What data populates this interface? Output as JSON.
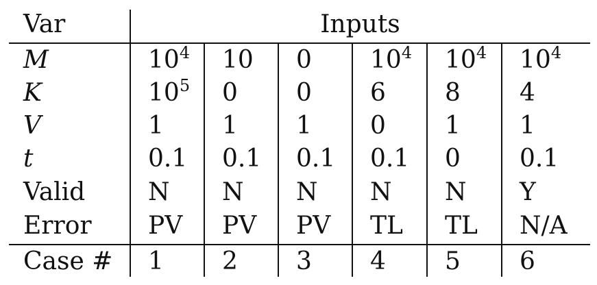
{
  "table": {
    "header": {
      "var_label": "Var",
      "inputs_label": "Inputs"
    },
    "rows": [
      {
        "label": "M",
        "italic": true,
        "values": [
          {
            "base": "10",
            "exp": "4"
          },
          {
            "base": "10",
            "exp": ""
          },
          {
            "base": "0",
            "exp": ""
          },
          {
            "base": "10",
            "exp": "4"
          },
          {
            "base": "10",
            "exp": "4"
          },
          {
            "base": "10",
            "exp": "4"
          }
        ]
      },
      {
        "label": "K",
        "italic": true,
        "values": [
          {
            "base": "10",
            "exp": "5"
          },
          {
            "base": "0",
            "exp": ""
          },
          {
            "base": "0",
            "exp": ""
          },
          {
            "base": "6",
            "exp": ""
          },
          {
            "base": "8",
            "exp": ""
          },
          {
            "base": "4",
            "exp": ""
          }
        ]
      },
      {
        "label": "V",
        "italic": true,
        "values": [
          {
            "base": "1",
            "exp": ""
          },
          {
            "base": "1",
            "exp": ""
          },
          {
            "base": "1",
            "exp": ""
          },
          {
            "base": "0",
            "exp": ""
          },
          {
            "base": "1",
            "exp": ""
          },
          {
            "base": "1",
            "exp": ""
          }
        ]
      },
      {
        "label": "t",
        "italic": true,
        "values": [
          {
            "base": "0.1",
            "exp": ""
          },
          {
            "base": "0.1",
            "exp": ""
          },
          {
            "base": "0.1",
            "exp": ""
          },
          {
            "base": "0.1",
            "exp": ""
          },
          {
            "base": "0",
            "exp": ""
          },
          {
            "base": "0.1",
            "exp": ""
          }
        ]
      },
      {
        "label": "Valid",
        "italic": false,
        "values": [
          {
            "base": "N",
            "exp": ""
          },
          {
            "base": "N",
            "exp": ""
          },
          {
            "base": "N",
            "exp": ""
          },
          {
            "base": "N",
            "exp": ""
          },
          {
            "base": "N",
            "exp": ""
          },
          {
            "base": "Y",
            "exp": ""
          }
        ]
      },
      {
        "label": "Error",
        "italic": false,
        "values": [
          {
            "base": "PV",
            "exp": ""
          },
          {
            "base": "PV",
            "exp": ""
          },
          {
            "base": "PV",
            "exp": ""
          },
          {
            "base": "TL",
            "exp": ""
          },
          {
            "base": "TL",
            "exp": ""
          },
          {
            "base": "N/A",
            "exp": ""
          }
        ]
      }
    ],
    "footer": {
      "label": "Case #",
      "values": [
        "1",
        "2",
        "3",
        "4",
        "5",
        "6"
      ]
    }
  }
}
